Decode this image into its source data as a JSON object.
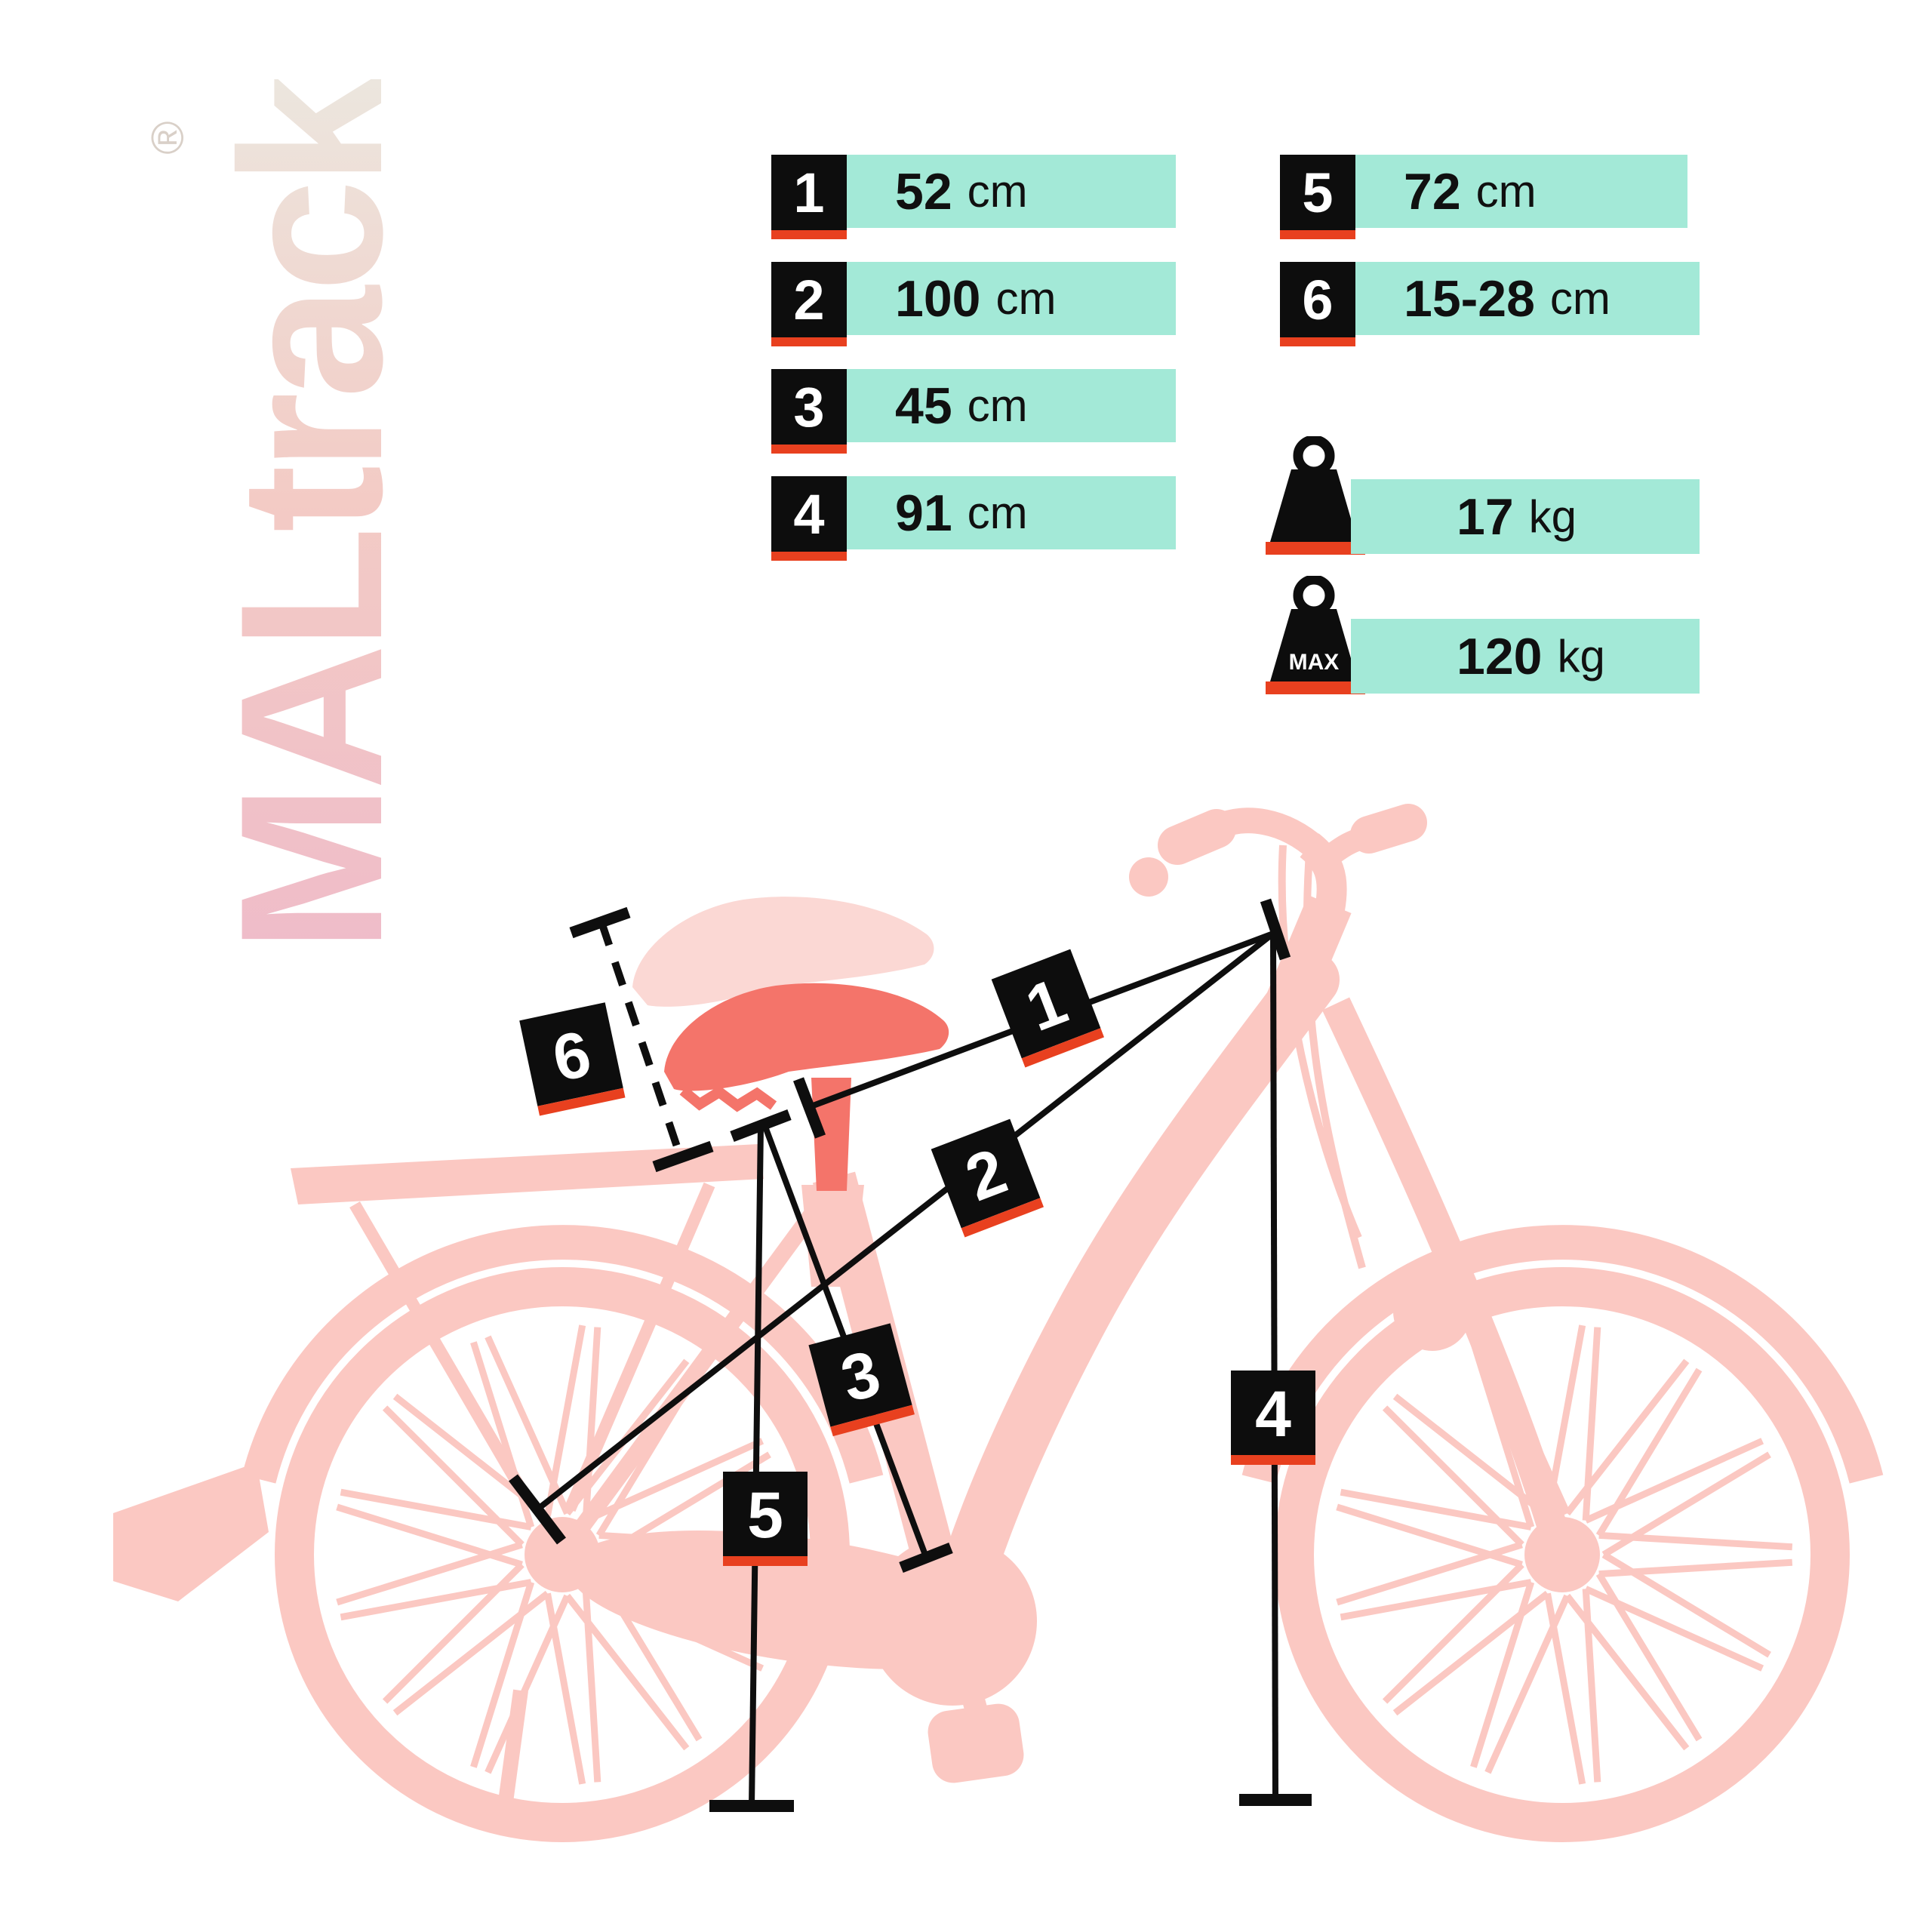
{
  "brand": {
    "logo_text": "MALtrack",
    "registered_mark": "®"
  },
  "spec_panel": {
    "measurements": [
      {
        "id": "1",
        "value": "52",
        "unit": "cm"
      },
      {
        "id": "2",
        "value": "100",
        "unit": "cm"
      },
      {
        "id": "3",
        "value": "45",
        "unit": "cm"
      },
      {
        "id": "4",
        "value": "91",
        "unit": "cm"
      },
      {
        "id": "5",
        "value": "72",
        "unit": "cm"
      },
      {
        "id": "6",
        "value": "15-28",
        "unit": "cm"
      }
    ],
    "weights": [
      {
        "badge": "",
        "value": "17",
        "unit": "kg"
      },
      {
        "badge": "MAX",
        "value": "120",
        "unit": "kg"
      }
    ]
  },
  "colors": {
    "bar_teal": "#A3E9D7",
    "accent_red": "#E8401F",
    "label_black": "#0D0D0D",
    "bike_pink": "#FBC8C2",
    "ghost_pink": "#FBD8D4",
    "saddle_coral": "#F4746A",
    "logo_gradient_start": "#EFBCC9",
    "logo_gradient_end": "#ECE6DE"
  }
}
